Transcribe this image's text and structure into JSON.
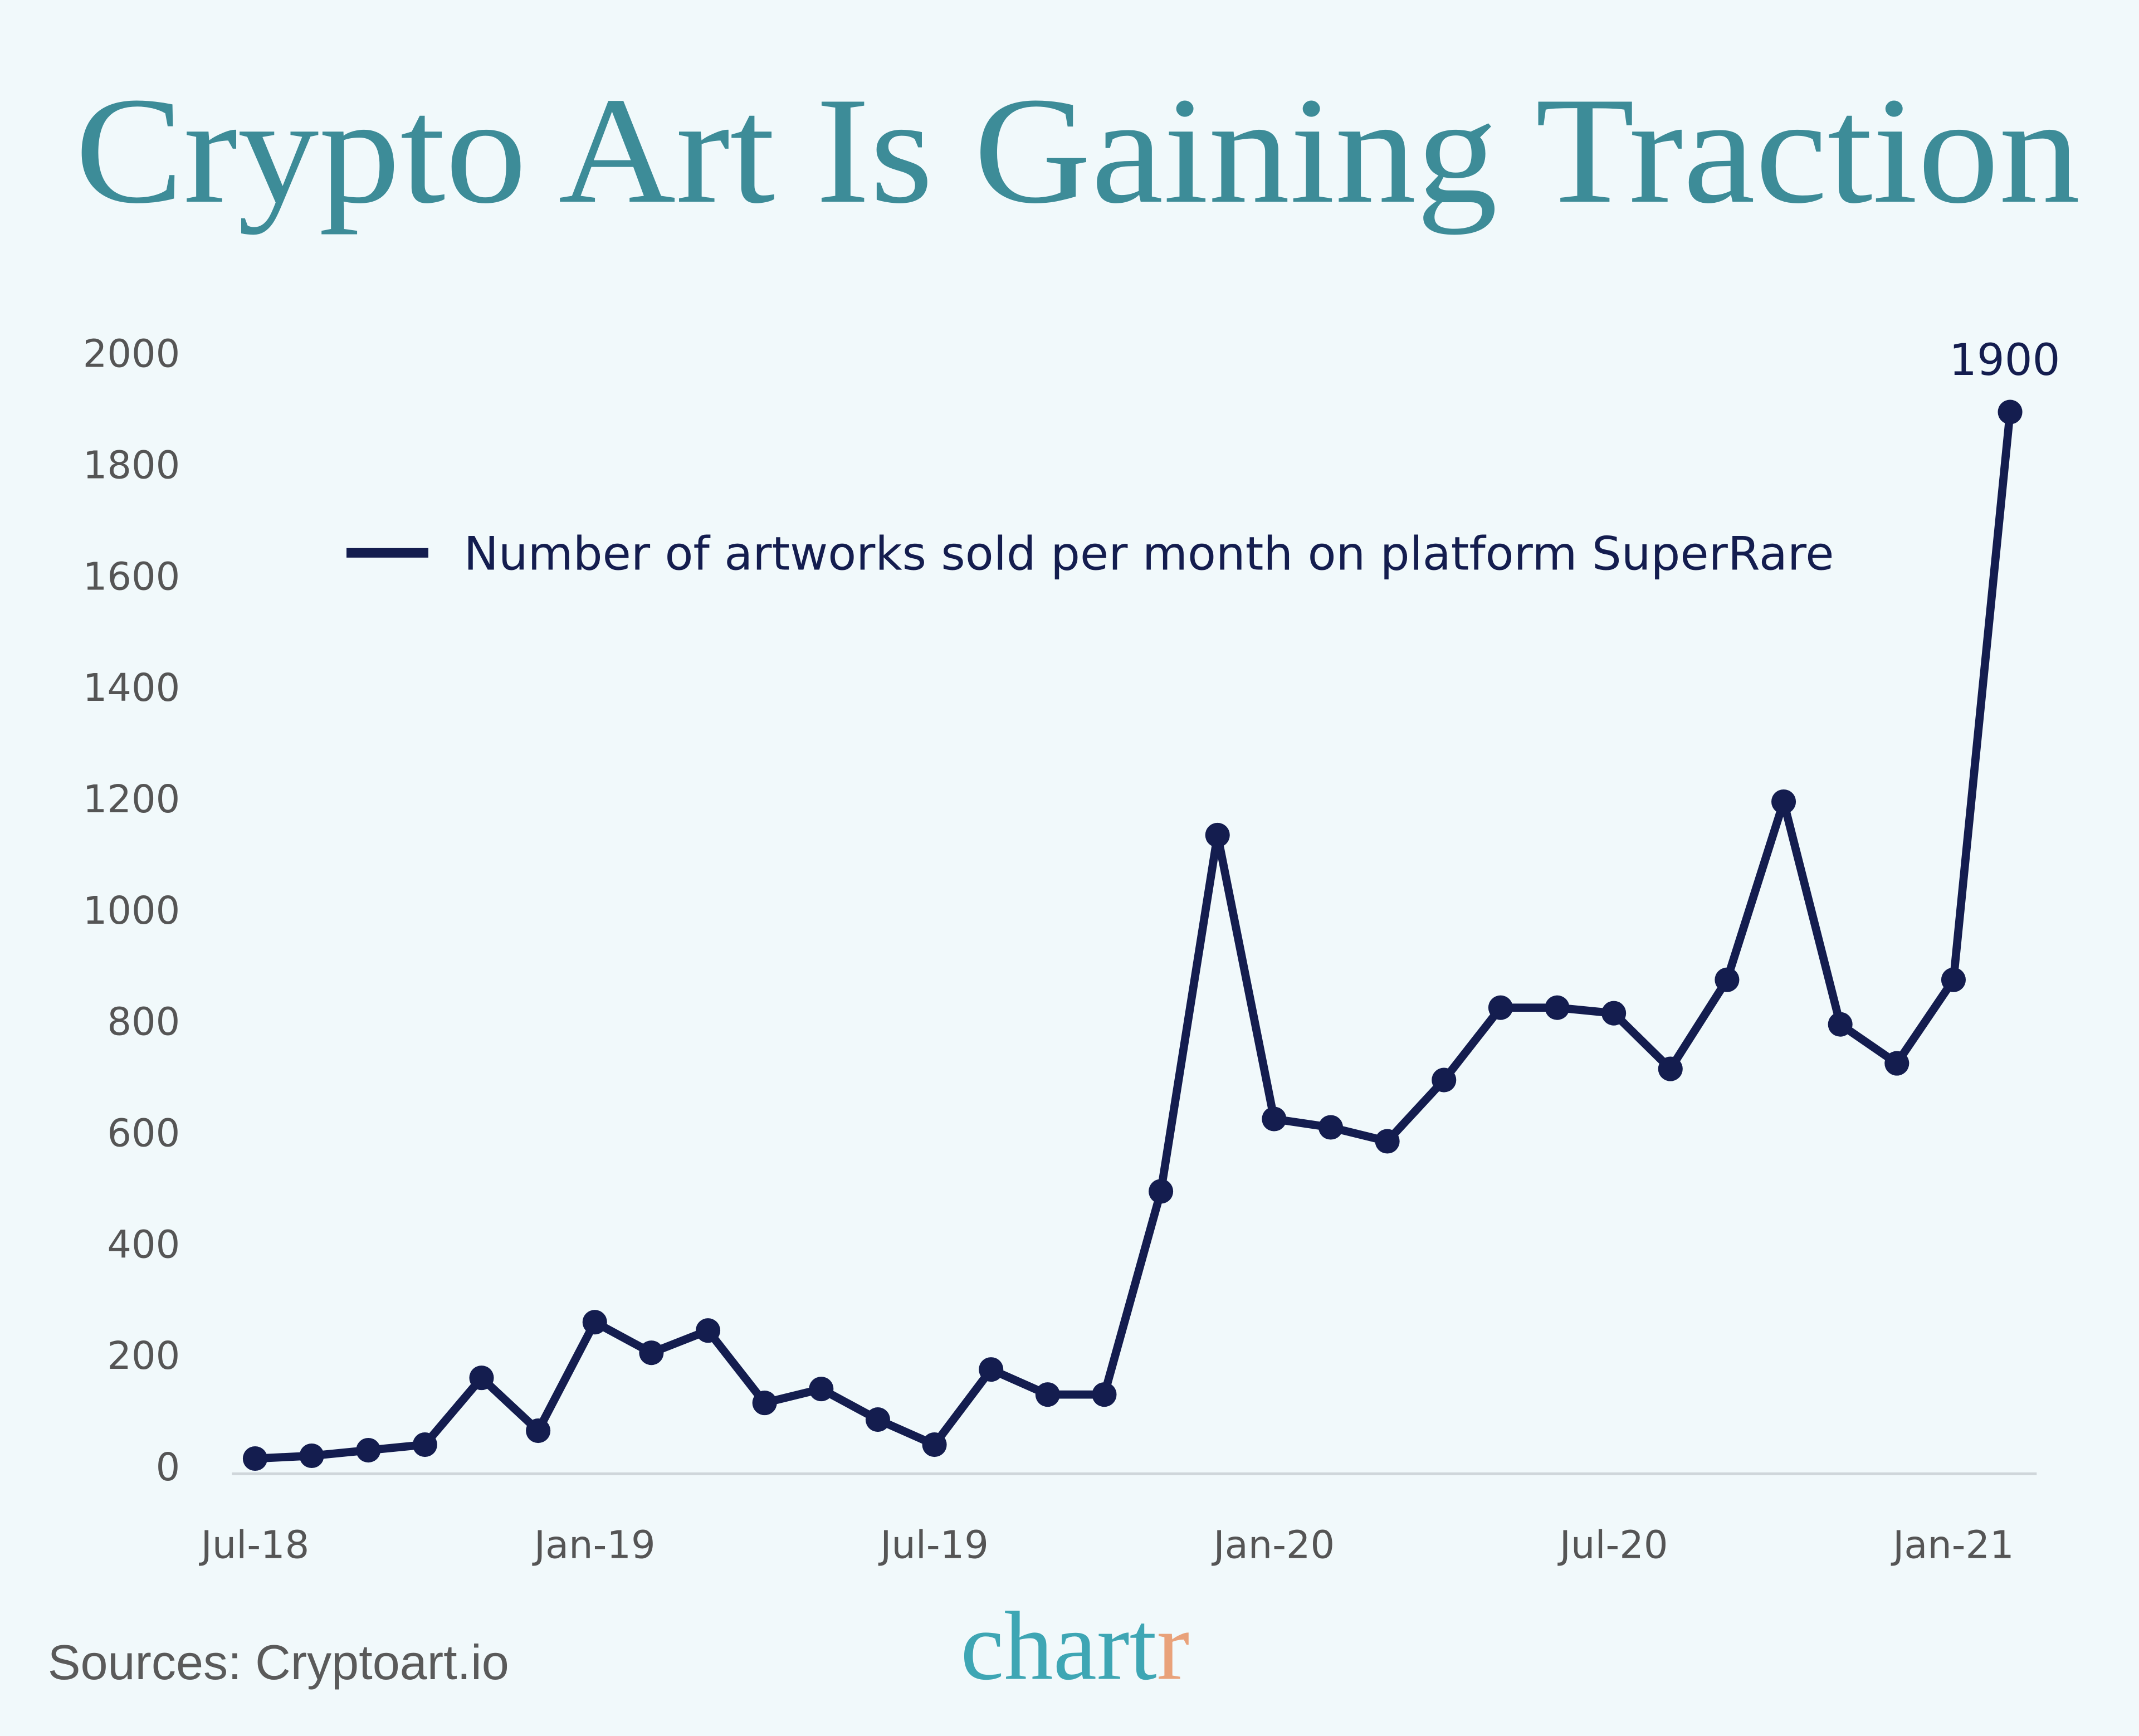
{
  "chart_data": {
    "type": "line",
    "title": "Crypto Art Is Gaining Traction",
    "categories": [
      "Jul-18",
      null,
      null,
      null,
      null,
      null,
      "Jan-19",
      null,
      null,
      null,
      null,
      null,
      "Jul-19",
      null,
      null,
      null,
      null,
      null,
      "Jan-20",
      null,
      null,
      null,
      null,
      null,
      "Jul-20",
      null,
      null,
      null,
      null,
      null,
      "Jan-21",
      null
    ],
    "series": [
      {
        "name": "Number of artworks sold per month on platform SuperRare",
        "color": "#141d4f",
        "values": [
          20,
          25,
          35,
          45,
          165,
          70,
          265,
          210,
          250,
          120,
          145,
          90,
          45,
          180,
          135,
          135,
          500,
          1140,
          630,
          615,
          590,
          700,
          830,
          830,
          820,
          720,
          880,
          1200,
          800,
          730,
          880,
          1900
        ]
      }
    ],
    "ylim": [
      0,
      2000
    ],
    "yticks": [
      0,
      200,
      400,
      600,
      800,
      1000,
      1200,
      1400,
      1600,
      1800,
      2000
    ],
    "grid": false,
    "legend": "top",
    "source": "Sources: Cryptoart.io",
    "logo": [
      "chart",
      "r"
    ]
  }
}
